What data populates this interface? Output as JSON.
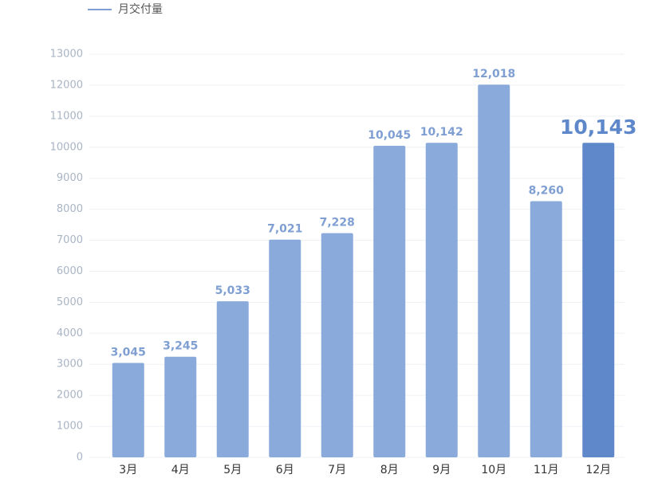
{
  "chart_data": {
    "type": "bar",
    "legend": "月交付量",
    "legend_color": "#7f9fd3",
    "categories": [
      "3月",
      "4月",
      "5月",
      "6月",
      "7月",
      "8月",
      "9月",
      "10月",
      "11月",
      "12月"
    ],
    "values": [
      3045,
      3245,
      5033,
      7021,
      7228,
      10045,
      10142,
      12018,
      8260,
      10143
    ],
    "value_labels": [
      "3,045",
      "3,245",
      "5,033",
      "7,021",
      "7,228",
      "10,045",
      "10,142",
      "12,018",
      "8,260",
      "10,143"
    ],
    "colors": [
      "#8aaadb",
      "#8aaadb",
      "#8aaadb",
      "#8aaadb",
      "#8aaadb",
      "#8aaadb",
      "#8aaadb",
      "#8aaadb",
      "#8aaadb",
      "#5e88ca"
    ],
    "ylim": [
      0,
      13000
    ],
    "yticks": [
      0,
      1000,
      2000,
      3000,
      4000,
      5000,
      6000,
      7000,
      8000,
      9000,
      10000,
      11000,
      12000,
      13000
    ],
    "grid": true
  }
}
